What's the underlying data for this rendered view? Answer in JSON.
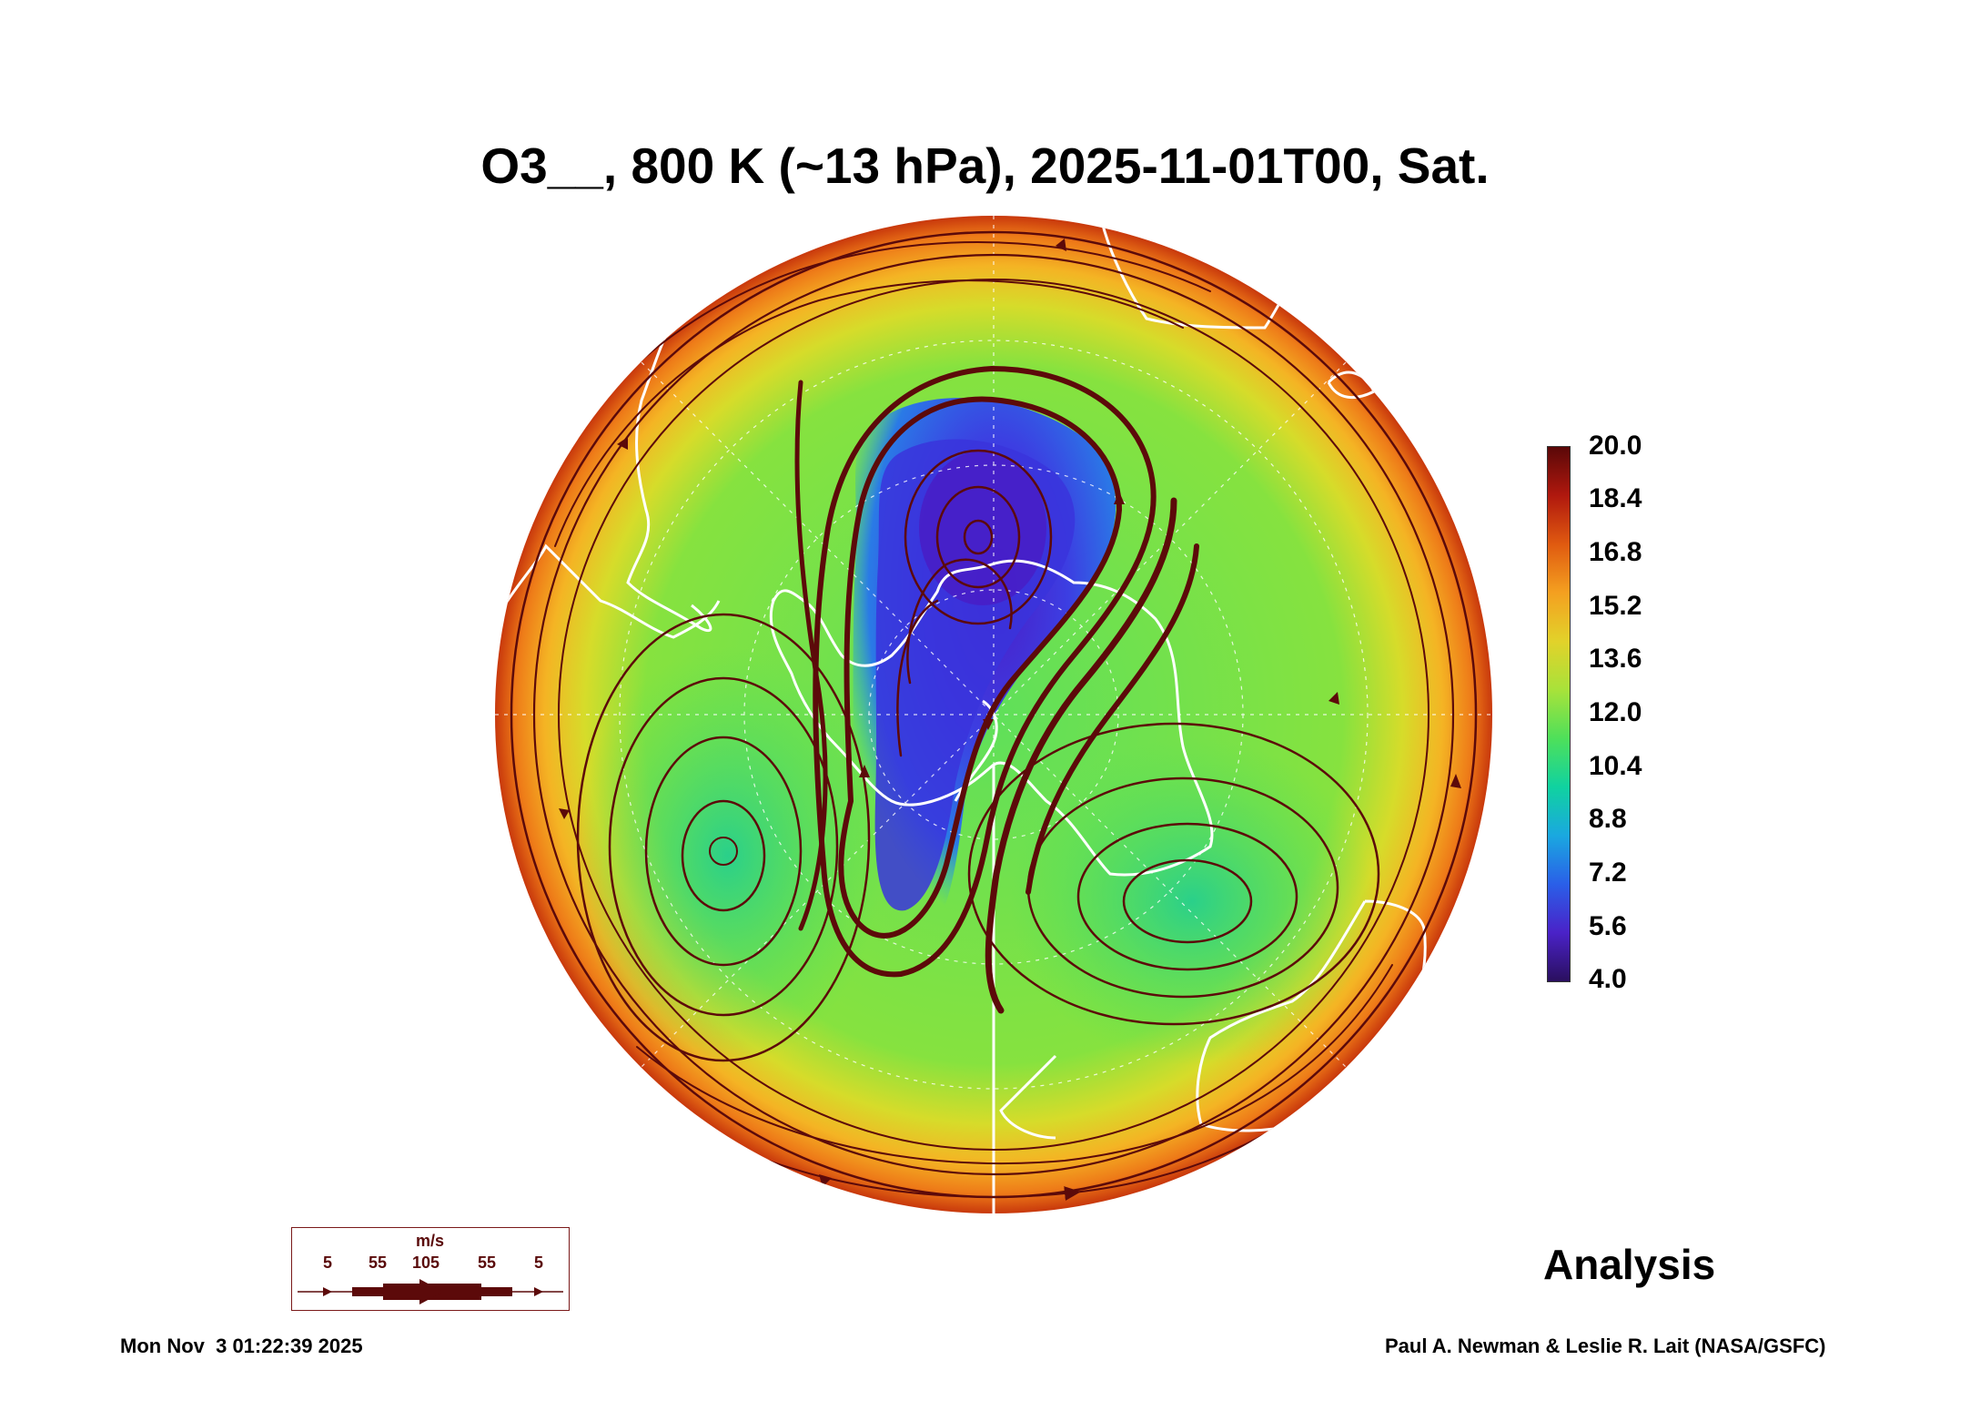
{
  "title": "O3__, 800 K (~13 hPa), 2025-11-01T00, Sat.",
  "colorbar": {
    "min": 4.0,
    "max": 20.0,
    "tick_labels": [
      "20.0",
      "18.4",
      "16.8",
      "15.2",
      "13.6",
      "12.0",
      "10.4",
      "8.8",
      "7.2",
      "5.6",
      "4.0"
    ],
    "colors": [
      "#2a0f5e",
      "#4a22c8",
      "#2a5fe8",
      "#1aa8e0",
      "#10d2a0",
      "#4ee05a",
      "#a8e23a",
      "#e2d22a",
      "#f4a020",
      "#e05a10",
      "#b0180e",
      "#5a0808"
    ]
  },
  "legend": {
    "unit": "m/s",
    "speeds": [
      "5",
      "55",
      "105",
      "55",
      "5"
    ]
  },
  "analysis_label": "Analysis",
  "timestamp": "Mon Nov  3 01:22:39 2025",
  "credit": "Paul A. Newman & Leslie R. Lait (NASA/GSFC)",
  "colors": {
    "streamline": "#5c0a0a",
    "coastline": "#ffffff",
    "low_ozone": "#3b2ad8",
    "background": "#ffffff"
  }
}
